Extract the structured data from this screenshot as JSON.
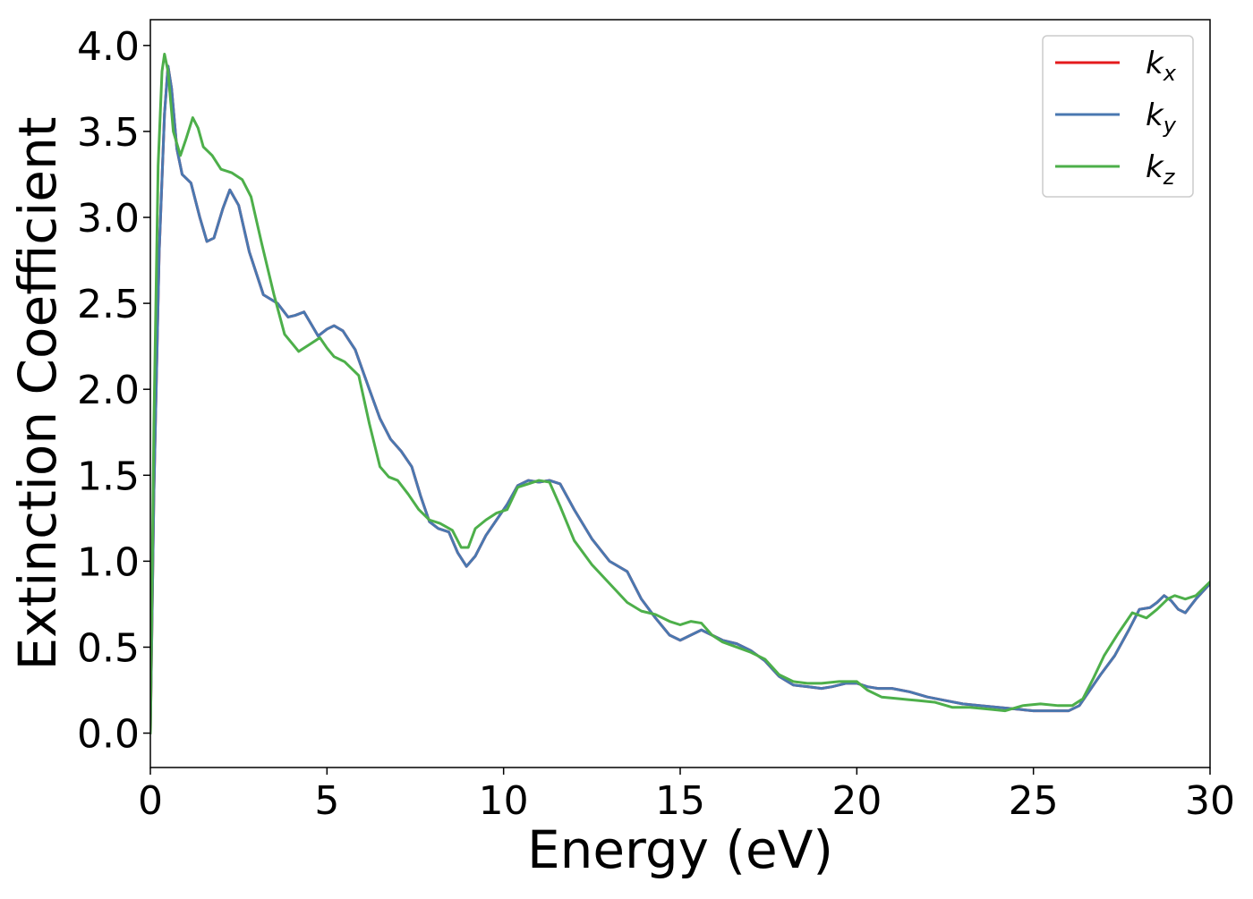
{
  "chart_data": {
    "type": "line",
    "title": "",
    "xlabel": "Energy (eV)",
    "ylabel": "Extinction Coefficient",
    "xlim": [
      0,
      30
    ],
    "ylim": [
      -0.2,
      4.15
    ],
    "xticks": [
      0,
      5,
      10,
      15,
      20,
      25,
      30
    ],
    "xtick_labels": [
      "0",
      "5",
      "10",
      "15",
      "20",
      "25",
      "30"
    ],
    "yticks": [
      0.0,
      0.5,
      1.0,
      1.5,
      2.0,
      2.5,
      3.0,
      3.5,
      4.0
    ],
    "ytick_labels": [
      "0.0",
      "0.5",
      "1.0",
      "1.5",
      "2.0",
      "2.5",
      "3.0",
      "3.5",
      "4.0"
    ],
    "grid": false,
    "legend_position": "top-right",
    "series": [
      {
        "name": "k",
        "subscript": "x",
        "color": "#e41a1c",
        "points": [
          [
            0,
            0
          ],
          [
            0.1,
            1.4
          ],
          [
            0.25,
            2.8
          ],
          [
            0.4,
            3.6
          ],
          [
            0.5,
            3.88
          ],
          [
            0.6,
            3.75
          ],
          [
            0.75,
            3.4
          ],
          [
            0.9,
            3.25
          ],
          [
            1.15,
            3.2
          ],
          [
            1.4,
            3.0
          ],
          [
            1.6,
            2.86
          ],
          [
            1.8,
            2.88
          ],
          [
            2.05,
            3.05
          ],
          [
            2.25,
            3.16
          ],
          [
            2.5,
            3.07
          ],
          [
            2.8,
            2.8
          ],
          [
            3.2,
            2.55
          ],
          [
            3.6,
            2.5
          ],
          [
            3.9,
            2.42
          ],
          [
            4.1,
            2.43
          ],
          [
            4.35,
            2.45
          ],
          [
            4.55,
            2.38
          ],
          [
            4.75,
            2.31
          ],
          [
            5.0,
            2.35
          ],
          [
            5.2,
            2.37
          ],
          [
            5.45,
            2.34
          ],
          [
            5.8,
            2.23
          ],
          [
            6.2,
            2.0
          ],
          [
            6.5,
            1.83
          ],
          [
            6.8,
            1.71
          ],
          [
            7.1,
            1.64
          ],
          [
            7.4,
            1.55
          ],
          [
            7.65,
            1.38
          ],
          [
            7.9,
            1.23
          ],
          [
            8.15,
            1.19
          ],
          [
            8.45,
            1.17
          ],
          [
            8.7,
            1.05
          ],
          [
            8.95,
            0.97
          ],
          [
            9.2,
            1.03
          ],
          [
            9.5,
            1.15
          ],
          [
            9.8,
            1.24
          ],
          [
            10.1,
            1.33
          ],
          [
            10.4,
            1.44
          ],
          [
            10.7,
            1.47
          ],
          [
            11.0,
            1.46
          ],
          [
            11.3,
            1.47
          ],
          [
            11.6,
            1.45
          ],
          [
            12.0,
            1.3
          ],
          [
            12.5,
            1.13
          ],
          [
            13.0,
            1.0
          ],
          [
            13.5,
            0.94
          ],
          [
            13.9,
            0.78
          ],
          [
            14.3,
            0.67
          ],
          [
            14.7,
            0.57
          ],
          [
            15.0,
            0.54
          ],
          [
            15.3,
            0.57
          ],
          [
            15.6,
            0.6
          ],
          [
            15.9,
            0.57
          ],
          [
            16.2,
            0.54
          ],
          [
            16.6,
            0.52
          ],
          [
            17.0,
            0.48
          ],
          [
            17.4,
            0.42
          ],
          [
            17.8,
            0.33
          ],
          [
            18.2,
            0.28
          ],
          [
            18.6,
            0.27
          ],
          [
            19.0,
            0.26
          ],
          [
            19.3,
            0.27
          ],
          [
            19.7,
            0.29
          ],
          [
            20.0,
            0.29
          ],
          [
            20.3,
            0.27
          ],
          [
            20.6,
            0.26
          ],
          [
            21.0,
            0.26
          ],
          [
            21.5,
            0.24
          ],
          [
            22.0,
            0.21
          ],
          [
            22.5,
            0.19
          ],
          [
            23.0,
            0.17
          ],
          [
            23.5,
            0.16
          ],
          [
            24.0,
            0.15
          ],
          [
            24.5,
            0.14
          ],
          [
            25.0,
            0.13
          ],
          [
            25.5,
            0.13
          ],
          [
            26.0,
            0.13
          ],
          [
            26.3,
            0.16
          ],
          [
            26.6,
            0.25
          ],
          [
            26.9,
            0.34
          ],
          [
            27.3,
            0.45
          ],
          [
            27.7,
            0.6
          ],
          [
            28.0,
            0.72
          ],
          [
            28.3,
            0.73
          ],
          [
            28.5,
            0.76
          ],
          [
            28.7,
            0.8
          ],
          [
            28.9,
            0.77
          ],
          [
            29.1,
            0.72
          ],
          [
            29.3,
            0.7
          ],
          [
            29.6,
            0.78
          ],
          [
            30.0,
            0.87
          ]
        ]
      },
      {
        "name": "k",
        "subscript": "y",
        "color": "#4a78b0",
        "points": [
          [
            0,
            0
          ],
          [
            0.1,
            1.4
          ],
          [
            0.25,
            2.8
          ],
          [
            0.4,
            3.6
          ],
          [
            0.5,
            3.88
          ],
          [
            0.6,
            3.75
          ],
          [
            0.75,
            3.4
          ],
          [
            0.9,
            3.25
          ],
          [
            1.15,
            3.2
          ],
          [
            1.4,
            3.0
          ],
          [
            1.6,
            2.86
          ],
          [
            1.8,
            2.88
          ],
          [
            2.05,
            3.05
          ],
          [
            2.25,
            3.16
          ],
          [
            2.5,
            3.07
          ],
          [
            2.8,
            2.8
          ],
          [
            3.2,
            2.55
          ],
          [
            3.6,
            2.5
          ],
          [
            3.9,
            2.42
          ],
          [
            4.1,
            2.43
          ],
          [
            4.35,
            2.45
          ],
          [
            4.55,
            2.38
          ],
          [
            4.75,
            2.31
          ],
          [
            5.0,
            2.35
          ],
          [
            5.2,
            2.37
          ],
          [
            5.45,
            2.34
          ],
          [
            5.8,
            2.23
          ],
          [
            6.2,
            2.0
          ],
          [
            6.5,
            1.83
          ],
          [
            6.8,
            1.71
          ],
          [
            7.1,
            1.64
          ],
          [
            7.4,
            1.55
          ],
          [
            7.65,
            1.38
          ],
          [
            7.9,
            1.23
          ],
          [
            8.15,
            1.19
          ],
          [
            8.45,
            1.17
          ],
          [
            8.7,
            1.05
          ],
          [
            8.95,
            0.97
          ],
          [
            9.2,
            1.03
          ],
          [
            9.5,
            1.15
          ],
          [
            9.8,
            1.24
          ],
          [
            10.1,
            1.33
          ],
          [
            10.4,
            1.44
          ],
          [
            10.7,
            1.47
          ],
          [
            11.0,
            1.46
          ],
          [
            11.3,
            1.47
          ],
          [
            11.6,
            1.45
          ],
          [
            12.0,
            1.3
          ],
          [
            12.5,
            1.13
          ],
          [
            13.0,
            1.0
          ],
          [
            13.5,
            0.94
          ],
          [
            13.9,
            0.78
          ],
          [
            14.3,
            0.67
          ],
          [
            14.7,
            0.57
          ],
          [
            15.0,
            0.54
          ],
          [
            15.3,
            0.57
          ],
          [
            15.6,
            0.6
          ],
          [
            15.9,
            0.57
          ],
          [
            16.2,
            0.54
          ],
          [
            16.6,
            0.52
          ],
          [
            17.0,
            0.48
          ],
          [
            17.4,
            0.42
          ],
          [
            17.8,
            0.33
          ],
          [
            18.2,
            0.28
          ],
          [
            18.6,
            0.27
          ],
          [
            19.0,
            0.26
          ],
          [
            19.3,
            0.27
          ],
          [
            19.7,
            0.29
          ],
          [
            20.0,
            0.29
          ],
          [
            20.3,
            0.27
          ],
          [
            20.6,
            0.26
          ],
          [
            21.0,
            0.26
          ],
          [
            21.5,
            0.24
          ],
          [
            22.0,
            0.21
          ],
          [
            22.5,
            0.19
          ],
          [
            23.0,
            0.17
          ],
          [
            23.5,
            0.16
          ],
          [
            24.0,
            0.15
          ],
          [
            24.5,
            0.14
          ],
          [
            25.0,
            0.13
          ],
          [
            25.5,
            0.13
          ],
          [
            26.0,
            0.13
          ],
          [
            26.3,
            0.16
          ],
          [
            26.6,
            0.25
          ],
          [
            26.9,
            0.34
          ],
          [
            27.3,
            0.45
          ],
          [
            27.7,
            0.6
          ],
          [
            28.0,
            0.72
          ],
          [
            28.3,
            0.73
          ],
          [
            28.5,
            0.76
          ],
          [
            28.7,
            0.8
          ],
          [
            28.9,
            0.77
          ],
          [
            29.1,
            0.72
          ],
          [
            29.3,
            0.7
          ],
          [
            29.6,
            0.78
          ],
          [
            30.0,
            0.87
          ]
        ]
      },
      {
        "name": "k",
        "subscript": "z",
        "color": "#4daf4a",
        "points": [
          [
            0,
            0
          ],
          [
            0.1,
            1.8
          ],
          [
            0.22,
            3.3
          ],
          [
            0.33,
            3.85
          ],
          [
            0.4,
            3.95
          ],
          [
            0.5,
            3.85
          ],
          [
            0.65,
            3.5
          ],
          [
            0.85,
            3.36
          ],
          [
            1.0,
            3.45
          ],
          [
            1.2,
            3.58
          ],
          [
            1.35,
            3.52
          ],
          [
            1.5,
            3.41
          ],
          [
            1.75,
            3.36
          ],
          [
            2.0,
            3.28
          ],
          [
            2.3,
            3.26
          ],
          [
            2.6,
            3.22
          ],
          [
            2.85,
            3.12
          ],
          [
            3.15,
            2.85
          ],
          [
            3.5,
            2.55
          ],
          [
            3.8,
            2.32
          ],
          [
            4.2,
            2.22
          ],
          [
            4.5,
            2.26
          ],
          [
            4.8,
            2.3
          ],
          [
            5.0,
            2.24
          ],
          [
            5.2,
            2.19
          ],
          [
            5.5,
            2.16
          ],
          [
            5.9,
            2.08
          ],
          [
            6.2,
            1.8
          ],
          [
            6.5,
            1.55
          ],
          [
            6.75,
            1.49
          ],
          [
            7.0,
            1.47
          ],
          [
            7.3,
            1.39
          ],
          [
            7.6,
            1.3
          ],
          [
            7.9,
            1.24
          ],
          [
            8.2,
            1.22
          ],
          [
            8.55,
            1.18
          ],
          [
            8.8,
            1.08
          ],
          [
            9.0,
            1.08
          ],
          [
            9.2,
            1.19
          ],
          [
            9.5,
            1.24
          ],
          [
            9.8,
            1.28
          ],
          [
            10.1,
            1.3
          ],
          [
            10.4,
            1.43
          ],
          [
            10.7,
            1.45
          ],
          [
            11.0,
            1.47
          ],
          [
            11.3,
            1.46
          ],
          [
            11.6,
            1.32
          ],
          [
            12.0,
            1.12
          ],
          [
            12.5,
            0.98
          ],
          [
            13.0,
            0.87
          ],
          [
            13.5,
            0.76
          ],
          [
            13.9,
            0.71
          ],
          [
            14.3,
            0.69
          ],
          [
            14.7,
            0.65
          ],
          [
            15.0,
            0.63
          ],
          [
            15.3,
            0.65
          ],
          [
            15.6,
            0.64
          ],
          [
            15.9,
            0.57
          ],
          [
            16.2,
            0.53
          ],
          [
            16.6,
            0.5
          ],
          [
            17.0,
            0.47
          ],
          [
            17.4,
            0.43
          ],
          [
            17.8,
            0.34
          ],
          [
            18.2,
            0.3
          ],
          [
            18.6,
            0.29
          ],
          [
            19.0,
            0.29
          ],
          [
            19.5,
            0.3
          ],
          [
            20.0,
            0.3
          ],
          [
            20.3,
            0.25
          ],
          [
            20.7,
            0.21
          ],
          [
            21.2,
            0.2
          ],
          [
            21.7,
            0.19
          ],
          [
            22.2,
            0.18
          ],
          [
            22.7,
            0.15
          ],
          [
            23.2,
            0.15
          ],
          [
            23.7,
            0.14
          ],
          [
            24.2,
            0.13
          ],
          [
            24.7,
            0.16
          ],
          [
            25.2,
            0.17
          ],
          [
            25.7,
            0.16
          ],
          [
            26.1,
            0.16
          ],
          [
            26.4,
            0.2
          ],
          [
            26.7,
            0.32
          ],
          [
            27.0,
            0.45
          ],
          [
            27.4,
            0.58
          ],
          [
            27.8,
            0.7
          ],
          [
            28.2,
            0.67
          ],
          [
            28.5,
            0.72
          ],
          [
            28.8,
            0.78
          ],
          [
            29.0,
            0.8
          ],
          [
            29.3,
            0.78
          ],
          [
            29.6,
            0.8
          ],
          [
            30.0,
            0.88
          ]
        ]
      }
    ]
  }
}
